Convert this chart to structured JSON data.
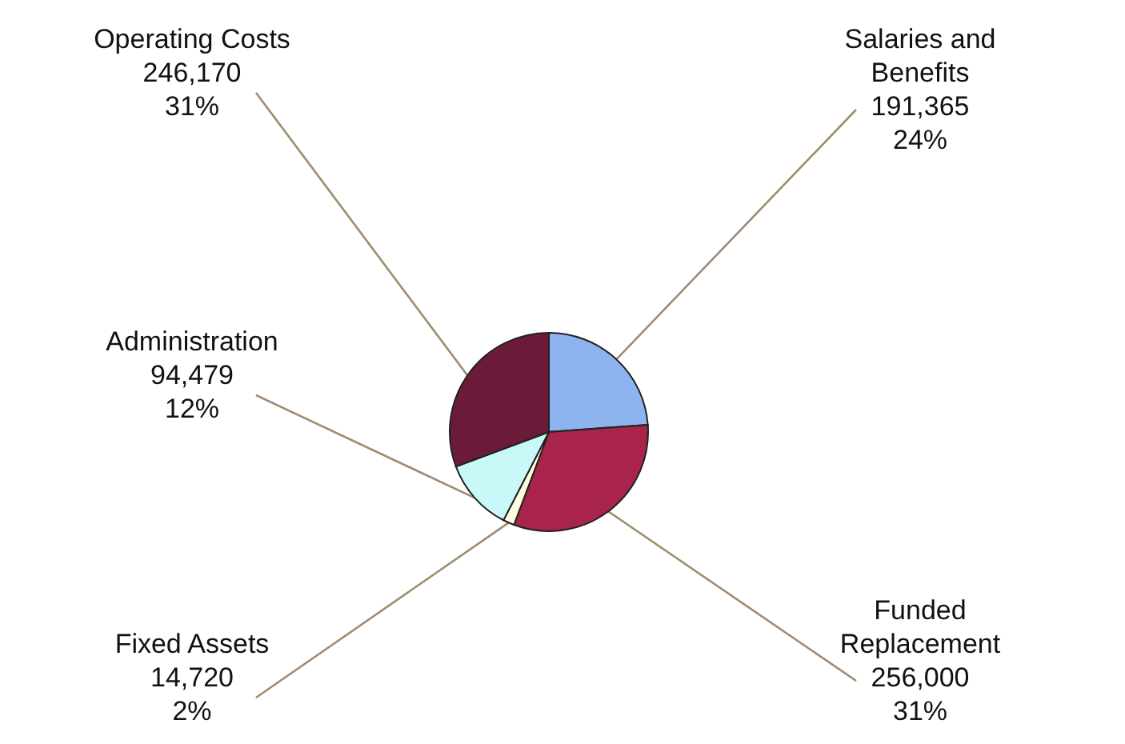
{
  "chart_data": {
    "type": "pie",
    "categories": [
      "Salaries and Benefits",
      "Funded Replacement",
      "Fixed Assets",
      "Administration",
      "Operating Costs"
    ],
    "values": [
      191365,
      256000,
      14720,
      94479,
      246170
    ],
    "colors": [
      "#8eb4f0",
      "#a8244a",
      "#fffde0",
      "#c8f8f8",
      "#6b1a3a"
    ],
    "value_labels": [
      "191,365\n24%",
      "256,000\n31%",
      "14,720\n2%",
      "94,479\n12%",
      "246,170\n31%"
    ]
  }
}
